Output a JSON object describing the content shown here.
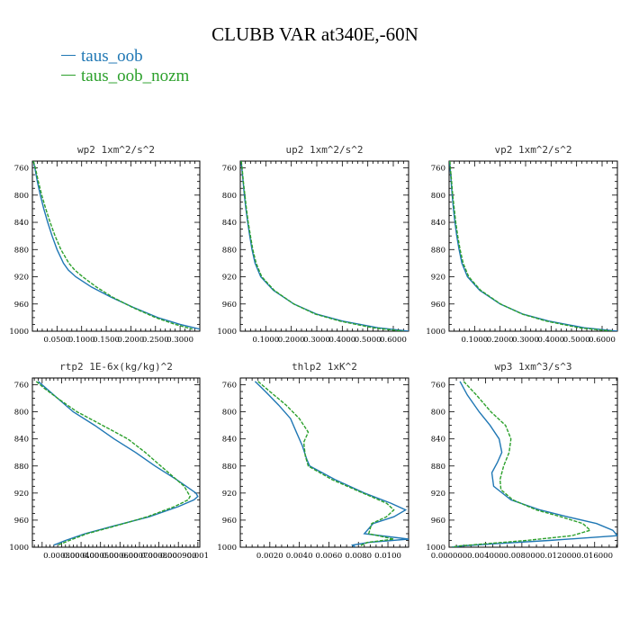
{
  "title": "CLUBB VAR at340E,-60N",
  "legend": [
    {
      "name": "taus_oob",
      "color": "#1f77b4"
    },
    {
      "name": "taus_oob_nozm",
      "color": "#2ca02c"
    }
  ],
  "chart_data": [
    {
      "type": "line",
      "title": "wp2  1xm^2/s^2",
      "xlim": [
        0.0,
        0.34
      ],
      "ylim": [
        1000,
        750
      ],
      "yticks": [
        760,
        800,
        840,
        880,
        920,
        960,
        1000
      ],
      "xticks": [
        0.05,
        0.1,
        0.15,
        0.2,
        0.25,
        0.3
      ],
      "xticklabels": [
        "0.0500",
        "0.1000",
        "0.1500",
        "0.2000",
        "0.2500",
        "0.3000"
      ],
      "series": [
        {
          "name": "taus_oob",
          "y": [
            750,
            760,
            780,
            800,
            820,
            840,
            860,
            880,
            900,
            910,
            920,
            935,
            950,
            965,
            980,
            990,
            997
          ],
          "x": [
            0.002,
            0.005,
            0.01,
            0.016,
            0.023,
            0.031,
            0.04,
            0.05,
            0.063,
            0.073,
            0.088,
            0.12,
            0.16,
            0.205,
            0.255,
            0.3,
            0.34
          ]
        },
        {
          "name": "taus_oob_nozm",
          "y": [
            750,
            760,
            780,
            800,
            820,
            840,
            860,
            880,
            900,
            910,
            920,
            935,
            950,
            965,
            980,
            990,
            997
          ],
          "x": [
            0.002,
            0.006,
            0.012,
            0.019,
            0.027,
            0.036,
            0.046,
            0.058,
            0.074,
            0.086,
            0.102,
            0.13,
            0.163,
            0.203,
            0.25,
            0.29,
            0.325
          ]
        }
      ]
    },
    {
      "type": "line",
      "title": "up2  1xm^2/s^2",
      "xlim": [
        0.0,
        0.66
      ],
      "ylim": [
        1000,
        750
      ],
      "yticks": [
        760,
        800,
        840,
        880,
        920,
        960,
        1000
      ],
      "xticks": [
        0.1,
        0.2,
        0.3,
        0.4,
        0.5,
        0.6
      ],
      "xticklabels": [
        "0.1000",
        "0.2000",
        "0.3000",
        "0.4000",
        "0.5000",
        "0.6000"
      ],
      "series": [
        {
          "name": "taus_oob",
          "y": [
            750,
            760,
            780,
            800,
            820,
            840,
            860,
            880,
            900,
            920,
            940,
            960,
            975,
            985,
            995,
            1000
          ],
          "x": [
            0.003,
            0.006,
            0.011,
            0.016,
            0.022,
            0.029,
            0.037,
            0.046,
            0.058,
            0.08,
            0.13,
            0.21,
            0.3,
            0.4,
            0.54,
            0.66
          ]
        },
        {
          "name": "taus_oob_nozm",
          "y": [
            750,
            760,
            780,
            800,
            820,
            840,
            860,
            880,
            900,
            920,
            940,
            960,
            975,
            985,
            995,
            1000
          ],
          "x": [
            0.004,
            0.007,
            0.012,
            0.018,
            0.024,
            0.031,
            0.04,
            0.049,
            0.062,
            0.084,
            0.133,
            0.21,
            0.295,
            0.39,
            0.52,
            0.64
          ]
        }
      ]
    },
    {
      "type": "line",
      "title": "vp2  1xm^2/s^2",
      "xlim": [
        0.0,
        0.66
      ],
      "ylim": [
        1000,
        750
      ],
      "yticks": [
        760,
        800,
        840,
        880,
        920,
        960,
        1000
      ],
      "xticks": [
        0.1,
        0.2,
        0.3,
        0.4,
        0.5,
        0.6
      ],
      "xticklabels": [
        "0.1000",
        "0.2000",
        "0.3000",
        "0.4000",
        "0.5000",
        "0.6000"
      ],
      "series": [
        {
          "name": "taus_oob",
          "y": [
            750,
            760,
            780,
            800,
            820,
            840,
            860,
            880,
            900,
            920,
            940,
            960,
            975,
            985,
            995,
            1000
          ],
          "x": [
            0.002,
            0.004,
            0.008,
            0.012,
            0.017,
            0.023,
            0.03,
            0.039,
            0.05,
            0.072,
            0.12,
            0.2,
            0.29,
            0.39,
            0.53,
            0.66
          ]
        },
        {
          "name": "taus_oob_nozm",
          "y": [
            750,
            760,
            780,
            800,
            820,
            840,
            860,
            880,
            900,
            920,
            940,
            960,
            975,
            985,
            995,
            1000
          ],
          "x": [
            0.003,
            0.005,
            0.01,
            0.014,
            0.02,
            0.026,
            0.034,
            0.043,
            0.055,
            0.077,
            0.124,
            0.202,
            0.288,
            0.38,
            0.51,
            0.64
          ]
        }
      ]
    },
    {
      "type": "line",
      "title": "rtp2  1E-6x(kg/kg)^2",
      "xlim": [
        0.00015,
        0.00101
      ],
      "ylim": [
        1000,
        750
      ],
      "yticks": [
        760,
        800,
        840,
        880,
        920,
        960,
        1000
      ],
      "xticks": [
        0.0003,
        0.0004,
        0.0005,
        0.0006,
        0.0007,
        0.0008,
        0.0009,
        0.001
      ],
      "xticklabels": [
        "0.000300",
        "0.000400",
        "0.000500",
        "0.000600",
        "0.000700",
        "0.000800",
        "0.000900",
        "0.001"
      ],
      "series": [
        {
          "name": "taus_oob",
          "y": [
            755,
            765,
            780,
            800,
            820,
            840,
            860,
            880,
            900,
            910,
            920,
            925,
            930,
            940,
            955,
            970,
            980,
            990,
            997
          ],
          "x": [
            0.00018,
            0.00022,
            0.00028,
            0.00036,
            0.00047,
            0.00057,
            0.00068,
            0.00078,
            0.00089,
            0.00094,
            0.00099,
            0.001,
            0.00098,
            0.0009,
            0.00075,
            0.00055,
            0.00042,
            0.00032,
            0.00026
          ]
        },
        {
          "name": "taus_oob_nozm",
          "y": [
            755,
            765,
            780,
            800,
            820,
            840,
            860,
            880,
            900,
            910,
            920,
            925,
            930,
            940,
            955,
            970,
            980,
            990,
            997
          ],
          "x": [
            0.00017,
            0.00021,
            0.00028,
            0.00038,
            0.00051,
            0.00064,
            0.00073,
            0.00081,
            0.00089,
            0.00093,
            0.00095,
            0.00096,
            0.00095,
            0.00088,
            0.00074,
            0.00056,
            0.00043,
            0.00034,
            0.00028
          ]
        }
      ]
    },
    {
      "type": "line",
      "title": "thlp2  1xK^2",
      "xlim": [
        0.0,
        0.0114
      ],
      "ylim": [
        1000,
        750
      ],
      "yticks": [
        760,
        800,
        840,
        880,
        920,
        960,
        1000
      ],
      "xticks": [
        0.002,
        0.004,
        0.006,
        0.008,
        0.01
      ],
      "xticklabels": [
        "0.0020",
        "0.0040",
        "0.0060",
        "0.0080",
        "0.0100"
      ],
      "series": [
        {
          "name": "taus_oob",
          "y": [
            755,
            770,
            790,
            810,
            830,
            850,
            870,
            880,
            900,
            920,
            935,
            945,
            955,
            965,
            980,
            988,
            993,
            997,
            1000
          ],
          "x": [
            0.001,
            0.0017,
            0.0026,
            0.0034,
            0.0038,
            0.0042,
            0.0045,
            0.0047,
            0.0064,
            0.0084,
            0.0102,
            0.0112,
            0.0104,
            0.009,
            0.0084,
            0.0114,
            0.0087,
            0.0076,
            0.0078
          ]
        },
        {
          "name": "taus_oob_nozm",
          "y": [
            755,
            770,
            790,
            810,
            830,
            845,
            865,
            880,
            900,
            920,
            935,
            945,
            955,
            965,
            980,
            988,
            993,
            997,
            1000
          ],
          "x": [
            0.0012,
            0.002,
            0.0031,
            0.004,
            0.0046,
            0.0043,
            0.0044,
            0.0046,
            0.0062,
            0.0083,
            0.0099,
            0.0104,
            0.0099,
            0.0089,
            0.0087,
            0.0104,
            0.0086,
            0.0082,
            0.0083
          ]
        }
      ]
    },
    {
      "type": "line",
      "title": "wp3  1xm^3/s^3",
      "xlim": [
        0.0,
        0.0185
      ],
      "ylim": [
        1000,
        750
      ],
      "yticks": [
        760,
        800,
        840,
        880,
        920,
        960,
        1000
      ],
      "xticks": [
        0.0,
        0.004,
        0.008,
        0.012,
        0.016
      ],
      "xticklabels": [
        "0.000000",
        "0.004000",
        "0.008000",
        "0.012000",
        "0.016000"
      ],
      "series": [
        {
          "name": "taus_oob",
          "y": [
            755,
            775,
            800,
            820,
            840,
            860,
            875,
            890,
            910,
            930,
            945,
            955,
            965,
            975,
            983,
            990,
            995,
            998,
            1000
          ],
          "x": [
            0.0012,
            0.002,
            0.0033,
            0.0045,
            0.0055,
            0.0058,
            0.0053,
            0.0047,
            0.0049,
            0.0068,
            0.01,
            0.013,
            0.0162,
            0.018,
            0.0185,
            0.011,
            0.005,
            0.0015,
            0.0003
          ]
        },
        {
          "name": "taus_oob_nozm",
          "y": [
            755,
            775,
            800,
            820,
            840,
            860,
            880,
            900,
            915,
            930,
            945,
            955,
            965,
            975,
            983,
            990,
            995,
            998,
            1000
          ],
          "x": [
            0.0016,
            0.003,
            0.0046,
            0.0062,
            0.0068,
            0.0066,
            0.006,
            0.0056,
            0.0057,
            0.007,
            0.0096,
            0.0123,
            0.0147,
            0.0155,
            0.0135,
            0.0085,
            0.004,
            0.0012,
            0.0003
          ]
        }
      ]
    }
  ]
}
